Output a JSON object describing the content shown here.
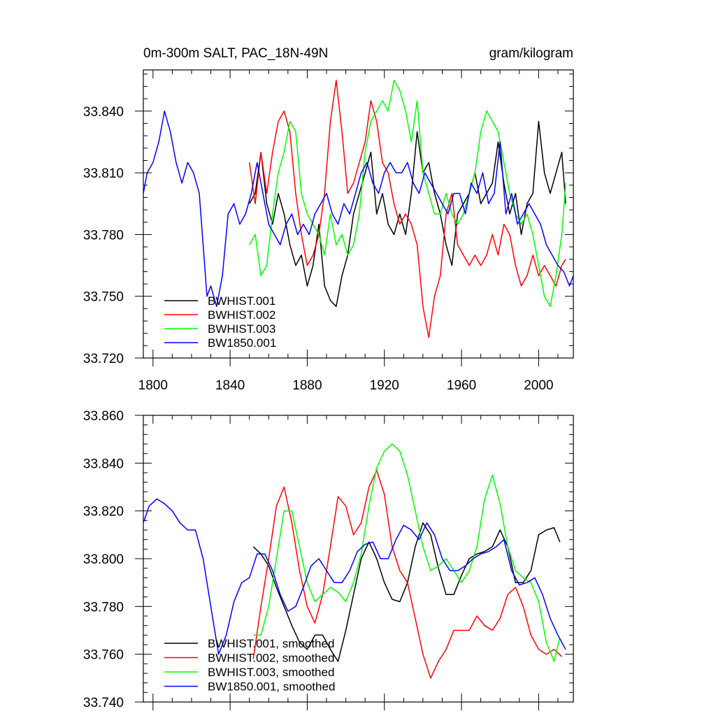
{
  "chart_data": [
    {
      "type": "line",
      "title": "0m-300m SALT, PAC_18N-49N",
      "units": "gram/kilogram",
      "xlim": [
        1795,
        2018
      ],
      "ylim": [
        33.72,
        33.86
      ],
      "xticks": [
        1800,
        1840,
        1880,
        1920,
        1960,
        2000
      ],
      "xtick_labels": [
        "1800",
        "1840",
        "1880",
        "1920",
        "1960",
        "2000"
      ],
      "yticks": [
        33.72,
        33.75,
        33.78,
        33.81,
        33.84
      ],
      "ytick_labels": [
        "33.720",
        "33.750",
        "33.780",
        "33.810",
        "33.840"
      ],
      "legend_position": "bottom-left",
      "series": [
        {
          "name": "BWHIST.001",
          "color": "#000000",
          "x": [
            1850,
            1853,
            1856,
            1859,
            1862,
            1865,
            1868,
            1871,
            1874,
            1877,
            1880,
            1883,
            1886,
            1889,
            1892,
            1895,
            1898,
            1901,
            1904,
            1907,
            1910,
            1913,
            1916,
            1919,
            1922,
            1925,
            1928,
            1931,
            1934,
            1937,
            1940,
            1943,
            1946,
            1949,
            1952,
            1955,
            1958,
            1961,
            1964,
            1967,
            1970,
            1973,
            1976,
            1979,
            1982,
            1985,
            1988,
            1991,
            1994,
            1997,
            2000,
            2003,
            2006,
            2009,
            2012,
            2014
          ],
          "values": [
            33.795,
            33.8,
            33.82,
            33.795,
            33.785,
            33.8,
            33.79,
            33.775,
            33.765,
            33.77,
            33.755,
            33.765,
            33.785,
            33.755,
            33.748,
            33.745,
            33.76,
            33.77,
            33.79,
            33.8,
            33.81,
            33.82,
            33.79,
            33.8,
            33.785,
            33.78,
            33.79,
            33.78,
            33.8,
            33.83,
            33.81,
            33.815,
            33.8,
            33.79,
            33.775,
            33.765,
            33.79,
            33.795,
            33.8,
            33.81,
            33.795,
            33.8,
            33.805,
            33.825,
            33.805,
            33.79,
            33.8,
            33.78,
            33.795,
            33.8,
            33.835,
            33.81,
            33.8,
            33.81,
            33.82,
            33.795
          ]
        },
        {
          "name": "BWHIST.002",
          "color": "#ff0000",
          "x": [
            1850,
            1853,
            1856,
            1859,
            1862,
            1865,
            1868,
            1871,
            1874,
            1877,
            1880,
            1883,
            1886,
            1889,
            1892,
            1895,
            1898,
            1901,
            1904,
            1907,
            1910,
            1913,
            1916,
            1919,
            1922,
            1925,
            1928,
            1931,
            1934,
            1937,
            1940,
            1943,
            1946,
            1949,
            1952,
            1955,
            1958,
            1961,
            1964,
            1967,
            1970,
            1973,
            1976,
            1979,
            1982,
            1985,
            1988,
            1991,
            1994,
            1997,
            2000,
            2003,
            2006,
            2009,
            2012,
            2014
          ],
          "values": [
            33.815,
            33.795,
            33.82,
            33.8,
            33.82,
            33.835,
            33.84,
            33.83,
            33.8,
            33.78,
            33.765,
            33.77,
            33.78,
            33.8,
            33.835,
            33.855,
            33.83,
            33.8,
            33.805,
            33.815,
            33.825,
            33.845,
            33.835,
            33.815,
            33.81,
            33.795,
            33.785,
            33.79,
            33.785,
            33.775,
            33.745,
            33.73,
            33.75,
            33.76,
            33.79,
            33.8,
            33.775,
            33.77,
            33.765,
            33.77,
            33.765,
            33.77,
            33.78,
            33.77,
            33.785,
            33.78,
            33.765,
            33.755,
            33.76,
            33.77,
            33.76,
            33.765,
            33.76,
            33.755,
            33.765,
            33.768
          ]
        },
        {
          "name": "BWHIST.003",
          "color": "#00ff00",
          "x": [
            1850,
            1853,
            1856,
            1859,
            1862,
            1865,
            1868,
            1871,
            1874,
            1877,
            1880,
            1883,
            1886,
            1889,
            1892,
            1895,
            1898,
            1901,
            1904,
            1907,
            1910,
            1913,
            1916,
            1919,
            1922,
            1925,
            1928,
            1931,
            1934,
            1937,
            1940,
            1943,
            1946,
            1949,
            1952,
            1955,
            1958,
            1961,
            1964,
            1967,
            1970,
            1973,
            1976,
            1979,
            1982,
            1985,
            1988,
            1991,
            1994,
            1997,
            2000,
            2003,
            2006,
            2009,
            2012,
            2014
          ],
          "values": [
            33.775,
            33.78,
            33.76,
            33.765,
            33.79,
            33.81,
            33.82,
            33.835,
            33.83,
            33.8,
            33.79,
            33.785,
            33.78,
            33.77,
            33.79,
            33.775,
            33.78,
            33.77,
            33.775,
            33.79,
            33.82,
            33.835,
            33.84,
            33.845,
            33.84,
            33.855,
            33.85,
            33.84,
            33.825,
            33.845,
            33.81,
            33.8,
            33.79,
            33.79,
            33.8,
            33.79,
            33.785,
            33.79,
            33.8,
            33.81,
            33.83,
            33.84,
            33.835,
            33.83,
            33.815,
            33.8,
            33.79,
            33.785,
            33.79,
            33.78,
            33.765,
            33.75,
            33.745,
            33.76,
            33.78,
            33.805
          ]
        },
        {
          "name": "BW1850.001",
          "color": "#0000ff",
          "x": [
            1795,
            1797,
            1800,
            1803,
            1806,
            1809,
            1812,
            1815,
            1818,
            1821,
            1824,
            1826,
            1828,
            1830,
            1833,
            1836,
            1839,
            1842,
            1845,
            1848,
            1851,
            1854,
            1857,
            1860,
            1863,
            1866,
            1869,
            1872,
            1875,
            1878,
            1881,
            1884,
            1887,
            1890,
            1893,
            1896,
            1899,
            1902,
            1905,
            1908,
            1911,
            1914,
            1917,
            1920,
            1923,
            1926,
            1929,
            1932,
            1935,
            1938,
            1941,
            1944,
            1947,
            1950,
            1953,
            1956,
            1959,
            1962,
            1965,
            1968,
            1971,
            1974,
            1977,
            1980,
            1983,
            1986,
            1989,
            1992,
            1995,
            1998,
            2001,
            2004,
            2007,
            2010,
            2013,
            2016,
            2018
          ],
          "values": [
            33.8,
            33.81,
            33.815,
            33.825,
            33.84,
            33.83,
            33.815,
            33.805,
            33.815,
            33.81,
            33.8,
            33.775,
            33.75,
            33.755,
            33.745,
            33.76,
            33.79,
            33.795,
            33.785,
            33.79,
            33.8,
            33.815,
            33.8,
            33.785,
            33.78,
            33.775,
            33.785,
            33.79,
            33.78,
            33.785,
            33.78,
            33.79,
            33.795,
            33.8,
            33.79,
            33.785,
            33.795,
            33.79,
            33.8,
            33.81,
            33.815,
            33.805,
            33.8,
            33.81,
            33.815,
            33.81,
            33.81,
            33.815,
            33.805,
            33.8,
            33.81,
            33.805,
            33.8,
            33.795,
            33.79,
            33.8,
            33.8,
            33.79,
            33.805,
            33.8,
            33.81,
            33.795,
            33.8,
            33.825,
            33.79,
            33.8,
            33.785,
            33.79,
            33.795,
            33.79,
            33.785,
            33.775,
            33.77,
            33.765,
            33.762,
            33.755,
            33.76
          ]
        }
      ]
    },
    {
      "type": "line",
      "xlim": [
        1795,
        2018
      ],
      "ylim": [
        33.74,
        33.86
      ],
      "yticks": [
        33.74,
        33.76,
        33.78,
        33.8,
        33.82,
        33.84,
        33.86
      ],
      "ytick_labels": [
        "33.740",
        "33.760",
        "33.780",
        "33.800",
        "33.820",
        "33.840",
        "33.860"
      ],
      "legend_position": "bottom-left",
      "series": [
        {
          "name": "BWHIST.001, smoothed",
          "color": "#000000",
          "x": [
            1852,
            1856,
            1860,
            1864,
            1868,
            1872,
            1876,
            1880,
            1884,
            1888,
            1892,
            1896,
            1900,
            1904,
            1908,
            1912,
            1916,
            1920,
            1924,
            1928,
            1932,
            1936,
            1940,
            1944,
            1948,
            1952,
            1956,
            1960,
            1964,
            1968,
            1972,
            1976,
            1980,
            1984,
            1988,
            1992,
            1996,
            2000,
            2004,
            2008,
            2011
          ],
          "values": [
            33.805,
            33.802,
            33.797,
            33.788,
            33.78,
            33.772,
            33.765,
            33.762,
            33.768,
            33.768,
            33.762,
            33.757,
            33.77,
            33.785,
            33.8,
            33.807,
            33.8,
            33.79,
            33.783,
            33.782,
            33.79,
            33.805,
            33.815,
            33.81,
            33.796,
            33.785,
            33.785,
            33.793,
            33.8,
            33.802,
            33.803,
            33.805,
            33.812,
            33.805,
            33.79,
            33.79,
            33.795,
            33.81,
            33.812,
            33.813,
            33.807
          ]
        },
        {
          "name": "BWHIST.002, smoothed",
          "color": "#ff0000",
          "x": [
            1852,
            1856,
            1860,
            1864,
            1868,
            1872,
            1876,
            1880,
            1884,
            1888,
            1892,
            1896,
            1900,
            1904,
            1908,
            1912,
            1916,
            1920,
            1924,
            1928,
            1932,
            1936,
            1940,
            1944,
            1948,
            1952,
            1956,
            1960,
            1964,
            1968,
            1972,
            1976,
            1980,
            1984,
            1988,
            1992,
            1996,
            2000,
            2004,
            2008,
            2012
          ],
          "values": [
            33.758,
            33.78,
            33.8,
            33.822,
            33.83,
            33.815,
            33.795,
            33.78,
            33.773,
            33.785,
            33.805,
            33.826,
            33.822,
            33.81,
            33.815,
            33.83,
            33.837,
            33.827,
            33.805,
            33.795,
            33.79,
            33.775,
            33.76,
            33.75,
            33.757,
            33.762,
            33.77,
            33.77,
            33.77,
            33.776,
            33.772,
            33.77,
            33.775,
            33.785,
            33.788,
            33.78,
            33.768,
            33.762,
            33.76,
            33.762,
            33.759
          ]
        },
        {
          "name": "BWHIST.003, smoothed",
          "color": "#00ff00",
          "x": [
            1852,
            1856,
            1860,
            1864,
            1868,
            1872,
            1876,
            1880,
            1884,
            1888,
            1892,
            1896,
            1900,
            1904,
            1908,
            1912,
            1916,
            1920,
            1924,
            1928,
            1932,
            1936,
            1940,
            1944,
            1948,
            1952,
            1956,
            1960,
            1964,
            1968,
            1972,
            1976,
            1980,
            1984,
            1988,
            1992,
            1996,
            2000,
            2004,
            2008,
            2011
          ],
          "values": [
            33.768,
            33.768,
            33.78,
            33.8,
            33.82,
            33.82,
            33.805,
            33.79,
            33.782,
            33.785,
            33.788,
            33.786,
            33.782,
            33.79,
            33.802,
            33.822,
            33.838,
            33.845,
            33.848,
            33.845,
            33.835,
            33.82,
            33.805,
            33.795,
            33.797,
            33.8,
            33.795,
            33.79,
            33.795,
            33.805,
            33.825,
            33.835,
            33.823,
            33.805,
            33.795,
            33.792,
            33.79,
            33.782,
            33.765,
            33.757,
            33.767
          ]
        },
        {
          "name": "BW1850.001, smoothed",
          "color": "#0000ff",
          "x": [
            1795,
            1798,
            1802,
            1806,
            1810,
            1814,
            1818,
            1822,
            1826,
            1830,
            1834,
            1838,
            1842,
            1846,
            1850,
            1854,
            1858,
            1862,
            1866,
            1870,
            1874,
            1878,
            1882,
            1886,
            1890,
            1894,
            1898,
            1902,
            1906,
            1910,
            1914,
            1918,
            1922,
            1926,
            1930,
            1934,
            1938,
            1942,
            1946,
            1950,
            1954,
            1958,
            1962,
            1966,
            1970,
            1974,
            1978,
            1982,
            1986,
            1990,
            1994,
            1998,
            2002,
            2006,
            2010,
            2014
          ],
          "values": [
            33.815,
            33.822,
            33.825,
            33.823,
            33.82,
            33.815,
            33.812,
            33.812,
            33.8,
            33.78,
            33.76,
            33.768,
            33.782,
            33.79,
            33.792,
            33.802,
            33.802,
            33.795,
            33.785,
            33.778,
            33.78,
            33.788,
            33.797,
            33.8,
            33.795,
            33.79,
            33.79,
            33.795,
            33.803,
            33.806,
            33.807,
            33.8,
            33.8,
            33.808,
            33.814,
            33.812,
            33.808,
            33.815,
            33.81,
            33.8,
            33.795,
            33.795,
            33.797,
            33.8,
            33.802,
            33.803,
            33.805,
            33.808,
            33.795,
            33.789,
            33.79,
            33.792,
            33.785,
            33.775,
            33.768,
            33.762
          ]
        }
      ]
    }
  ]
}
